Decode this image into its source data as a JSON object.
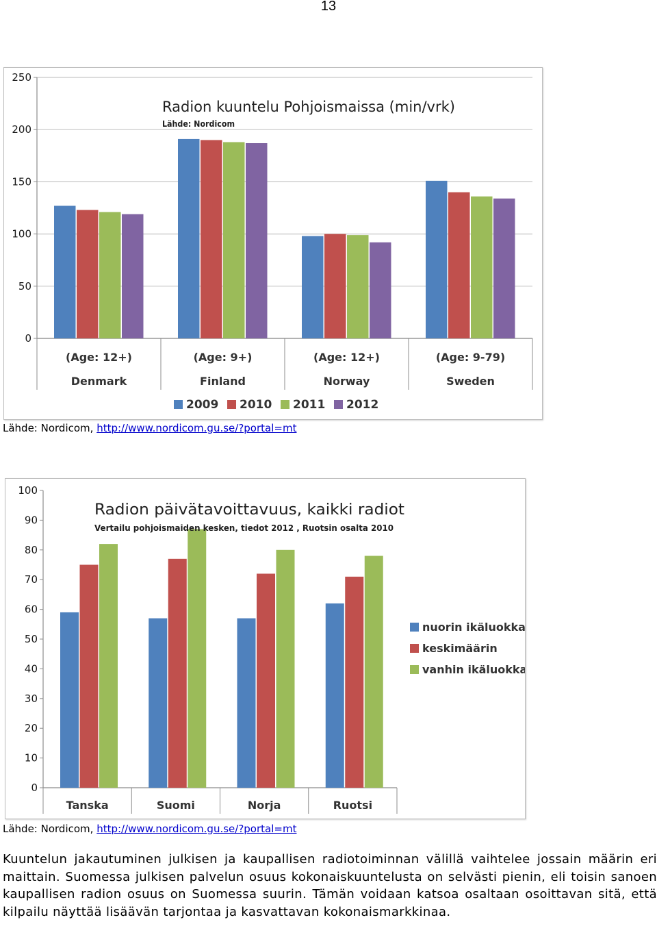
{
  "page_number": "13",
  "source_prefix": "Lähde: Nordicom, ",
  "source_link": "http://www.nordicom.gu.se/?portal=mt",
  "body_text": "Kuuntelun jakautuminen julkisen ja kaupallisen radiotoiminnan välillä vaihtelee jossain määrin eri maittain. Suomessa julkisen palvelun osuus kokonaiskuuntelusta on selvästi pienin, eli toisin sanoen kaupallisen radion osuus on Suomessa suurin. Tämän voidaan katsoa osaltaan osoittavan sitä, että kilpailu näyttää lisäävän tarjontaa ja kasvattavan kokonaismarkkinaa.",
  "chart_data": [
    {
      "type": "bar",
      "title": "Radion kuuntelu Pohjoismaissa (min/vrk)",
      "subtitle": "Lähde: Nordicom",
      "categories": [
        "Denmark",
        "Finland",
        "Norway",
        "Sweden"
      ],
      "category_notes": [
        "(Age: 12+)",
        "(Age: 9+)",
        "(Age: 12+)",
        "(Age: 9-79)"
      ],
      "series": [
        {
          "name": "2009",
          "color": "#4f81bd",
          "values": [
            127,
            191,
            98,
            151
          ]
        },
        {
          "name": "2010",
          "color": "#c0504d",
          "values": [
            123,
            190,
            100,
            140
          ]
        },
        {
          "name": "2011",
          "color": "#9bbb59",
          "values": [
            121,
            188,
            99,
            136
          ]
        },
        {
          "name": "2012",
          "color": "#8064a2",
          "values": [
            119,
            187,
            92,
            134
          ]
        }
      ],
      "ylim": [
        0,
        250
      ],
      "yticks": [
        0,
        50,
        100,
        150,
        200,
        250
      ],
      "grid": true,
      "legend": "bottom"
    },
    {
      "type": "bar",
      "title": "Radion päivätavoittavuus, kaikki radiot",
      "subtitle": "Vertailu pohjoismaiden kesken, tiedot 2012 , Ruotsin osalta 2010",
      "categories": [
        "Tanska",
        "Suomi",
        "Norja",
        "Ruotsi"
      ],
      "series": [
        {
          "name": "nuorin ikäluokka",
          "color": "#4f81bd",
          "values": [
            59,
            57,
            57,
            62
          ]
        },
        {
          "name": "keskimäärin",
          "color": "#c0504d",
          "values": [
            75,
            77,
            72,
            71
          ]
        },
        {
          "name": "vanhin ikäluokka",
          "color": "#9bbb59",
          "values": [
            82,
            87,
            80,
            78
          ]
        }
      ],
      "ylim": [
        0,
        100
      ],
      "yticks": [
        0,
        10,
        20,
        30,
        40,
        50,
        60,
        70,
        80,
        90,
        100
      ],
      "grid": false,
      "legend": "right"
    }
  ]
}
